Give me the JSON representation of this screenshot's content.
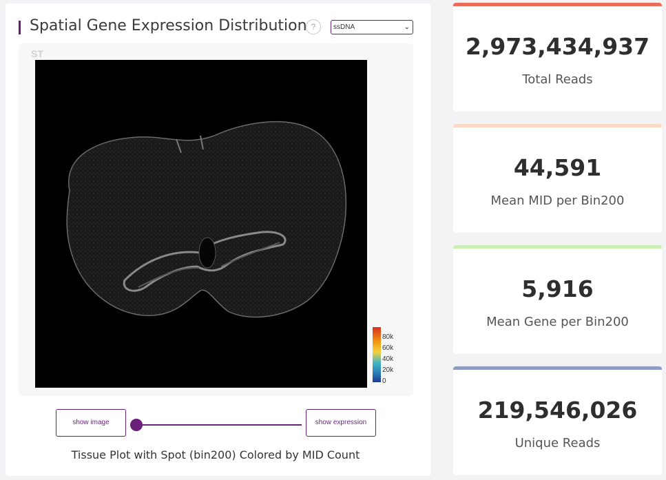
{
  "panel": {
    "title": "Spatial Gene Expression Distribution",
    "help": "?",
    "select_value": "ssDNA",
    "st_label": "ST",
    "caption": "Tissue Plot with Spot (bin200) Colored by MID Count",
    "show_image": "show image",
    "show_expression": "show expression",
    "colorbar_ticks": [
      "80k",
      "60k",
      "40k",
      "20k",
      "0"
    ],
    "slider_value": 0
  },
  "cards": [
    {
      "value": "2,973,434,937",
      "label": "Total Reads",
      "color": "#ee6a5a"
    },
    {
      "value": "44,591",
      "label": "Mean MID per Bin200",
      "color": "#fbd9c4"
    },
    {
      "value": "5,916",
      "label": "Mean Gene per Bin200",
      "color": "#c9efb6"
    },
    {
      "value": "219,546,026",
      "label": "Unique Reads",
      "color": "#8f9bc2"
    }
  ]
}
